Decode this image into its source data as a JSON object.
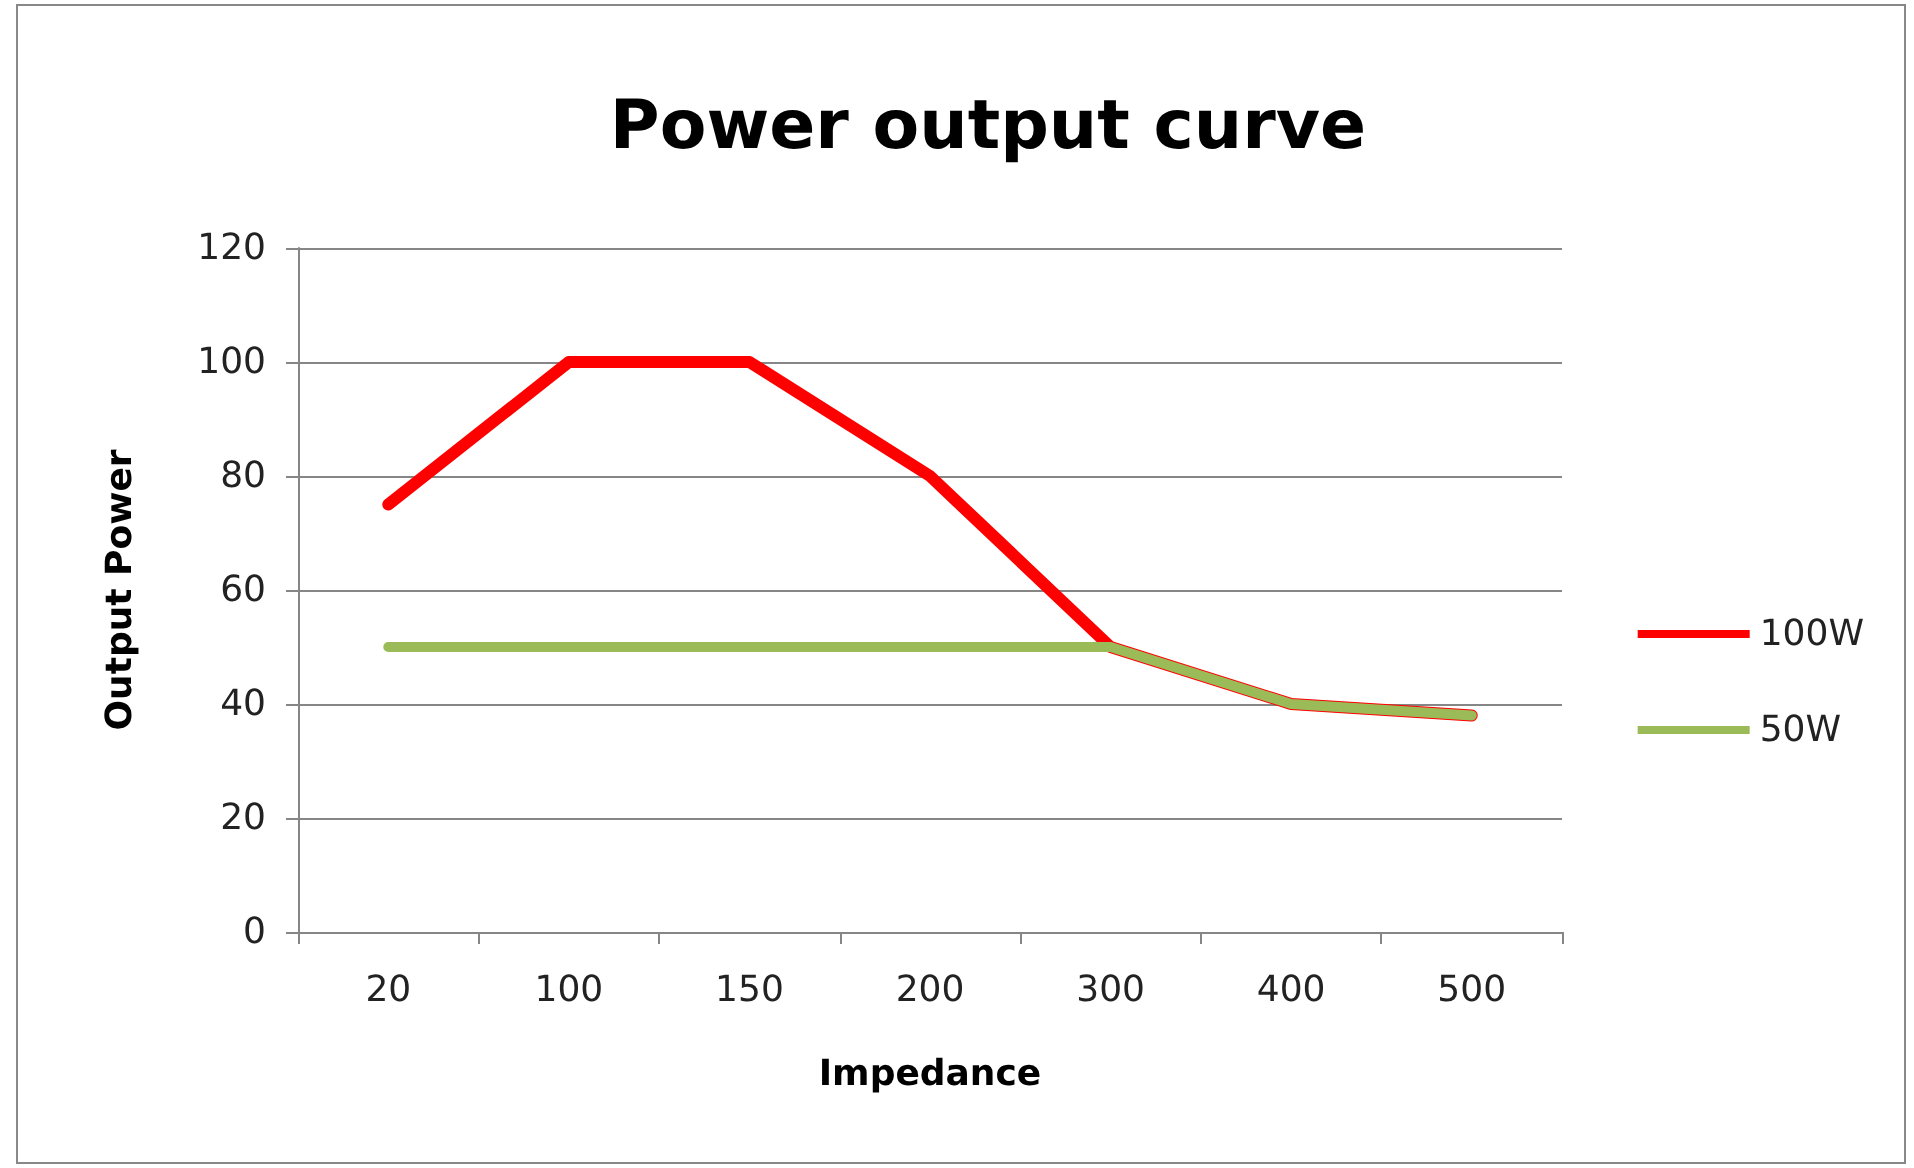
{
  "chart_data": {
    "type": "line",
    "title": "Power output curve",
    "xlabel": "Impedance",
    "ylabel": "Output Power",
    "categories": [
      "20",
      "100",
      "150",
      "200",
      "300",
      "400",
      "500"
    ],
    "series": [
      {
        "name": "100W",
        "color": "#ff0000",
        "values": [
          75,
          100,
          100,
          80,
          50,
          40,
          38
        ]
      },
      {
        "name": "50W",
        "color": "#9bbb59",
        "values": [
          50,
          50,
          50,
          50,
          50,
          40,
          38
        ]
      }
    ],
    "ylim": [
      0,
      120
    ],
    "yticks": [
      0,
      20,
      40,
      60,
      80,
      100,
      120
    ],
    "grid": "y",
    "legend": "right",
    "marker": "none",
    "line_style": "solid"
  }
}
